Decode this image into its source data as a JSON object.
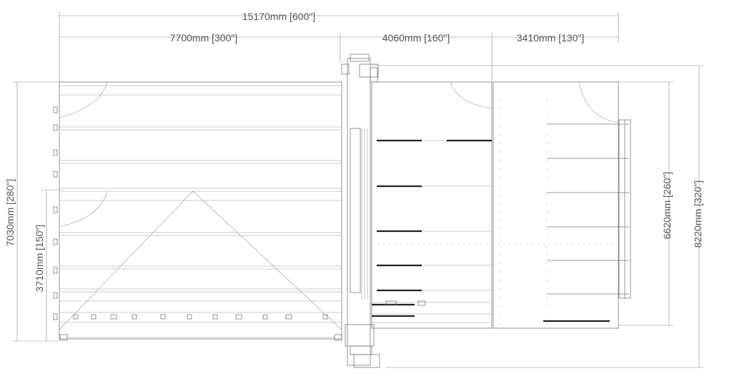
{
  "dimensions": {
    "total_length": "15170mm [600\"]",
    "left_section": "7700mm [300\"]",
    "middle_section": "4060mm [160\"]",
    "right_section": "3410mm [130\"]",
    "left_height": "7030mm [280\"]",
    "left_lower_height": "3710mm [150\"]",
    "right_height": "6620mm [260\"]",
    "overall_height": "8220mm [320\"]"
  },
  "colors": {
    "line": "#7a7a7a",
    "dimension": "#555555",
    "heavy_bar": "#222222"
  }
}
